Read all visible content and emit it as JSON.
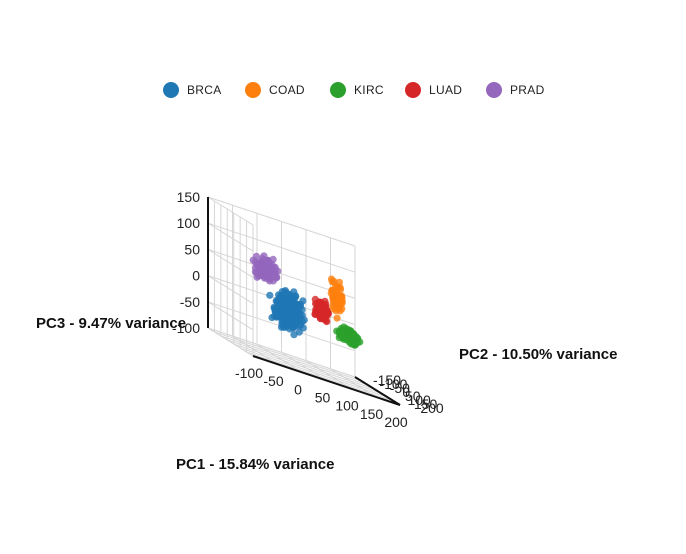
{
  "chart_data": {
    "type": "scatter",
    "subtype": "3d-scatter",
    "legend_position": "top",
    "grid": true,
    "axes": {
      "x": {
        "title": "PC1 - 15.84% variance",
        "range": [
          -100,
          200
        ],
        "ticks": [
          -100,
          -50,
          0,
          50,
          100,
          150,
          200
        ]
      },
      "y": {
        "title": "PC2 - 10.50% variance",
        "range": [
          -150,
          200
        ],
        "ticks": [
          -150,
          -100,
          -50,
          0,
          50,
          100,
          150,
          200
        ]
      },
      "z": {
        "title": "PC3 - 9.47% variance",
        "range": [
          -100,
          150
        ],
        "ticks": [
          -100,
          -50,
          0,
          50,
          100,
          150
        ]
      }
    },
    "series": [
      {
        "name": "BRCA",
        "color": "#1f77b4",
        "center": [
          20,
          20,
          -5
        ],
        "spread": [
          18,
          18,
          22
        ],
        "n": 320
      },
      {
        "name": "COAD",
        "color": "#ff7f0e",
        "center": [
          90,
          130,
          60
        ],
        "spread": [
          8,
          8,
          22
        ],
        "n": 60
      },
      {
        "name": "KIRC",
        "color": "#2ca02c",
        "center": [
          165,
          -70,
          -20
        ],
        "spread": [
          12,
          14,
          8
        ],
        "n": 160
      },
      {
        "name": "LUAD",
        "color": "#d62728",
        "center": [
          80,
          50,
          20
        ],
        "spread": [
          9,
          9,
          12
        ],
        "n": 110
      },
      {
        "name": "PRAD",
        "color": "#9467bd",
        "center": [
          -55,
          125,
          70
        ],
        "spread": [
          14,
          14,
          14
        ],
        "n": 130
      }
    ]
  }
}
